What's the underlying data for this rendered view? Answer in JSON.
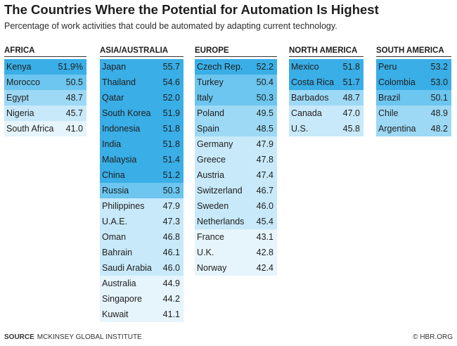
{
  "chart_data": {
    "type": "table",
    "title": "The Countries Where the Potential for Automation Is Highest",
    "subtitle": "Percentage of work activities that could be automated by adapting current technology.",
    "columns": [
      {
        "region": "AFRICA",
        "rows": [
          {
            "country": "Kenya",
            "value": "51.9%",
            "v": 51.9
          },
          {
            "country": "Morocco",
            "value": "50.5",
            "v": 50.5
          },
          {
            "country": "Egypt",
            "value": "48.7",
            "v": 48.7
          },
          {
            "country": "Nigeria",
            "value": "45.7",
            "v": 45.7
          },
          {
            "country": "South Africa",
            "value": "41.0",
            "v": 41.0
          }
        ]
      },
      {
        "region": "ASIA/AUSTRALIA",
        "rows": [
          {
            "country": "Japan",
            "value": "55.7",
            "v": 55.7
          },
          {
            "country": "Thailand",
            "value": "54.6",
            "v": 54.6
          },
          {
            "country": "Qatar",
            "value": "52.0",
            "v": 52.0
          },
          {
            "country": "South Korea",
            "value": "51.9",
            "v": 51.9
          },
          {
            "country": "Indonesia",
            "value": "51.8",
            "v": 51.8
          },
          {
            "country": "India",
            "value": "51.8",
            "v": 51.8
          },
          {
            "country": "Malaysia",
            "value": "51.4",
            "v": 51.4
          },
          {
            "country": "China",
            "value": "51.2",
            "v": 51.2
          },
          {
            "country": "Russia",
            "value": "50.3",
            "v": 50.3
          },
          {
            "country": "Philippines",
            "value": "47.9",
            "v": 47.9
          },
          {
            "country": "U.A.E.",
            "value": "47.3",
            "v": 47.3
          },
          {
            "country": "Oman",
            "value": "46.8",
            "v": 46.8
          },
          {
            "country": "Bahrain",
            "value": "46.1",
            "v": 46.1
          },
          {
            "country": "Saudi Arabia",
            "value": "46.0",
            "v": 46.0
          },
          {
            "country": "Australia",
            "value": "44.9",
            "v": 44.9
          },
          {
            "country": "Singapore",
            "value": "44.2",
            "v": 44.2
          },
          {
            "country": "Kuwait",
            "value": "41.1",
            "v": 41.1
          }
        ]
      },
      {
        "region": "EUROPE",
        "rows": [
          {
            "country": "Czech Rep.",
            "value": "52.2",
            "v": 52.2
          },
          {
            "country": "Turkey",
            "value": "50.4",
            "v": 50.4
          },
          {
            "country": "Italy",
            "value": "50.3",
            "v": 50.3
          },
          {
            "country": "Poland",
            "value": "49.5",
            "v": 49.5
          },
          {
            "country": "Spain",
            "value": "48.5",
            "v": 48.5
          },
          {
            "country": "Germany",
            "value": "47.9",
            "v": 47.9
          },
          {
            "country": "Greece",
            "value": "47.8",
            "v": 47.8
          },
          {
            "country": "Austria",
            "value": "47.4",
            "v": 47.4
          },
          {
            "country": "Switzerland",
            "value": "46.7",
            "v": 46.7
          },
          {
            "country": "Sweden",
            "value": "46.0",
            "v": 46.0
          },
          {
            "country": "Netherlands",
            "value": "45.4",
            "v": 45.4
          },
          {
            "country": "France",
            "value": "43.1",
            "v": 43.1
          },
          {
            "country": "U.K.",
            "value": "42.8",
            "v": 42.8
          },
          {
            "country": "Norway",
            "value": "42.4",
            "v": 42.4
          }
        ]
      },
      {
        "region": "NORTH AMERICA",
        "rows": [
          {
            "country": "Mexico",
            "value": "51.8",
            "v": 51.8
          },
          {
            "country": "Costa Rica",
            "value": "51.7",
            "v": 51.7
          },
          {
            "country": "Barbados",
            "value": "48.7",
            "v": 48.7
          },
          {
            "country": "Canada",
            "value": "47.0",
            "v": 47.0
          },
          {
            "country": "U.S.",
            "value": "45.8",
            "v": 45.8
          }
        ]
      },
      {
        "region": "SOUTH AMERICA",
        "rows": [
          {
            "country": "Peru",
            "value": "53.2",
            "v": 53.2
          },
          {
            "country": "Colombia",
            "value": "53.0",
            "v": 53.0
          },
          {
            "country": "Brazil",
            "value": "50.1",
            "v": 50.1
          },
          {
            "country": "Chile",
            "value": "48.9",
            "v": 48.9
          },
          {
            "country": "Argentina",
            "value": "48.2",
            "v": 48.2
          }
        ]
      }
    ],
    "color_scale": [
      {
        "min": 51.0,
        "color": "#3aaee6"
      },
      {
        "min": 50.0,
        "color": "#6cc6ef"
      },
      {
        "min": 48.0,
        "color": "#9dd9f5"
      },
      {
        "min": 45.0,
        "color": "#c8e9f9"
      },
      {
        "min": 0,
        "color": "#e6f4fc"
      }
    ]
  },
  "footer": {
    "source_label": "SOURCE",
    "source_text": "MCKINSEY GLOBAL INSTITUTE",
    "credit": "© HBR.ORG"
  }
}
